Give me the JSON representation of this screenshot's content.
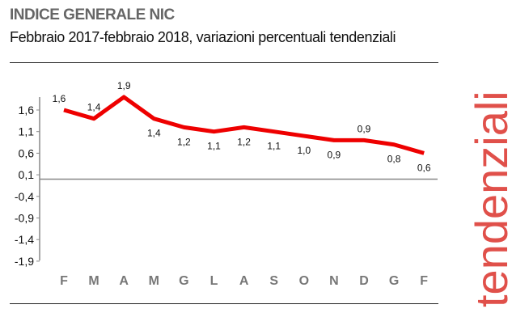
{
  "header": {
    "title": "INDICE GENERALE NIC",
    "subtitle": "Febbraio 2017-febbraio 2018, variazioni percentuali tendenziali",
    "side_label": "tendenziali"
  },
  "colors": {
    "line": "#ee0000",
    "side_label": "#e0504a",
    "axis": "#888888"
  },
  "chart_data": {
    "type": "line",
    "title": "INDICE GENERALE NIC",
    "subtitle": "Febbraio 2017-febbraio 2018, variazioni percentuali tendenziali",
    "categories": [
      "F",
      "M",
      "A",
      "M",
      "G",
      "L",
      "A",
      "S",
      "O",
      "N",
      "D",
      "G",
      "F"
    ],
    "values": [
      1.6,
      1.4,
      1.9,
      1.4,
      1.2,
      1.1,
      1.2,
      1.1,
      1.0,
      0.9,
      0.9,
      0.8,
      0.6
    ],
    "data_labels": [
      "1,6",
      "1,4",
      "1,9",
      "1,4",
      "1,2",
      "1,1",
      "1,2",
      "1,1",
      "1,0",
      "0,9",
      "0,9",
      "0,8",
      "0,6"
    ],
    "yticks": [
      1.6,
      1.1,
      0.6,
      0.1,
      -0.4,
      -0.9,
      -1.4,
      -1.9
    ],
    "ytick_labels": [
      "1,6",
      "1,1",
      "0,6",
      "0,1",
      "-0,4",
      "-0,9",
      "-1,4",
      "-1,9"
    ],
    "ylim": [
      -1.9,
      1.9
    ],
    "grid": false,
    "xlabel": "",
    "ylabel": ""
  }
}
